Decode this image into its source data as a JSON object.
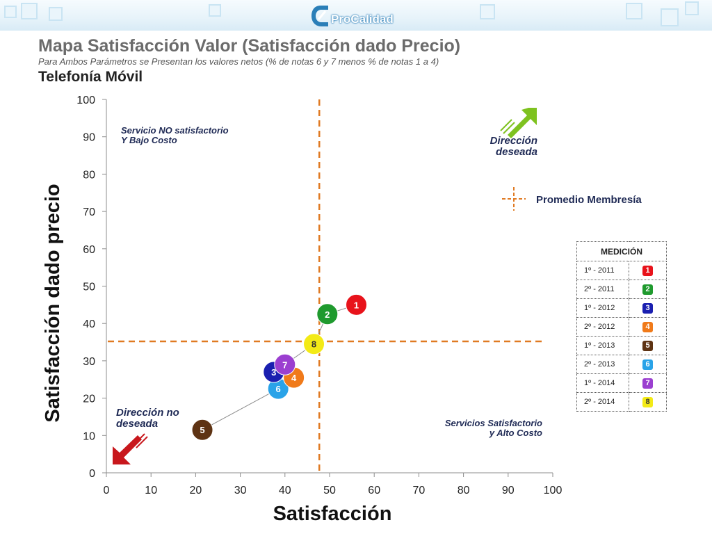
{
  "header": {
    "logo_text": "ProCalidad"
  },
  "title": "Mapa Satisfacción Valor (Satisfacción dado Precio)",
  "subtitle": "Para Ambos Parámetros se Presentan los valores netos (% de notas 6 y 7 menos % de notas 1 a 4)",
  "section": "Telefonía Móvil",
  "colors": {
    "average_line": "#e07a22",
    "connector": "#8a8a8a",
    "arrow_good": "#7ec21f",
    "arrow_bad": "#c8171c"
  },
  "chart_data": {
    "type": "scatter",
    "xlabel": "Satisfacción",
    "ylabel": "Satisfacción dado precio",
    "xlim": [
      0,
      100
    ],
    "ylim": [
      0,
      100
    ],
    "x_ticks": [
      0,
      10,
      20,
      30,
      40,
      50,
      60,
      70,
      80,
      90,
      100
    ],
    "y_ticks": [
      0,
      10,
      20,
      30,
      40,
      50,
      60,
      70,
      80,
      90,
      100
    ],
    "grid": false,
    "average": {
      "label": "Promedio Membresía",
      "x": 47.7,
      "y": 35.2
    },
    "points": [
      {
        "label": "1",
        "name": "1º - 2011",
        "x": 56,
        "y": 45,
        "color": "#e8131b",
        "text_color": "#ffffff"
      },
      {
        "label": "2",
        "name": "2º - 2011",
        "x": 49.5,
        "y": 42.5,
        "color": "#1f9a2e",
        "text_color": "#ffffff"
      },
      {
        "label": "3",
        "name": "1º - 2012",
        "x": 37.5,
        "y": 27,
        "color": "#1a1fb0",
        "text_color": "#ffffff"
      },
      {
        "label": "4",
        "name": "2º - 2012",
        "x": 42,
        "y": 25.5,
        "color": "#f07a1a",
        "text_color": "#ffffff"
      },
      {
        "label": "5",
        "name": "1º - 2013",
        "x": 21.5,
        "y": 11.5,
        "color": "#5e3313",
        "text_color": "#ffffff"
      },
      {
        "label": "6",
        "name": "2º - 2013",
        "x": 38.5,
        "y": 22.5,
        "color": "#2aa3e8",
        "text_color": "#ffffff"
      },
      {
        "label": "7",
        "name": "1º - 2014",
        "x": 40,
        "y": 29,
        "color": "#9b3fd0",
        "text_color": "#ffffff"
      },
      {
        "label": "8",
        "name": "2º - 2014",
        "x": 46.5,
        "y": 34.5,
        "color": "#f3ea16",
        "text_color": "#333333"
      }
    ],
    "connector_path": [
      "1",
      "2",
      "8",
      "7",
      "3",
      "6",
      "5"
    ],
    "quadrant_labels": {
      "top_left": [
        "Servicio NO satisfactorio",
        "Y Bajo Costo"
      ],
      "bottom_right": [
        "Servicios Satisfactorio",
        "y Alto Costo"
      ]
    },
    "direction_labels": {
      "desired": [
        "Dirección",
        "deseada"
      ],
      "undesired": [
        "Dirección no",
        "deseada"
      ]
    },
    "legend": {
      "average_label": "Promedio Membresía",
      "table_header": "MEDICIÓN"
    }
  }
}
